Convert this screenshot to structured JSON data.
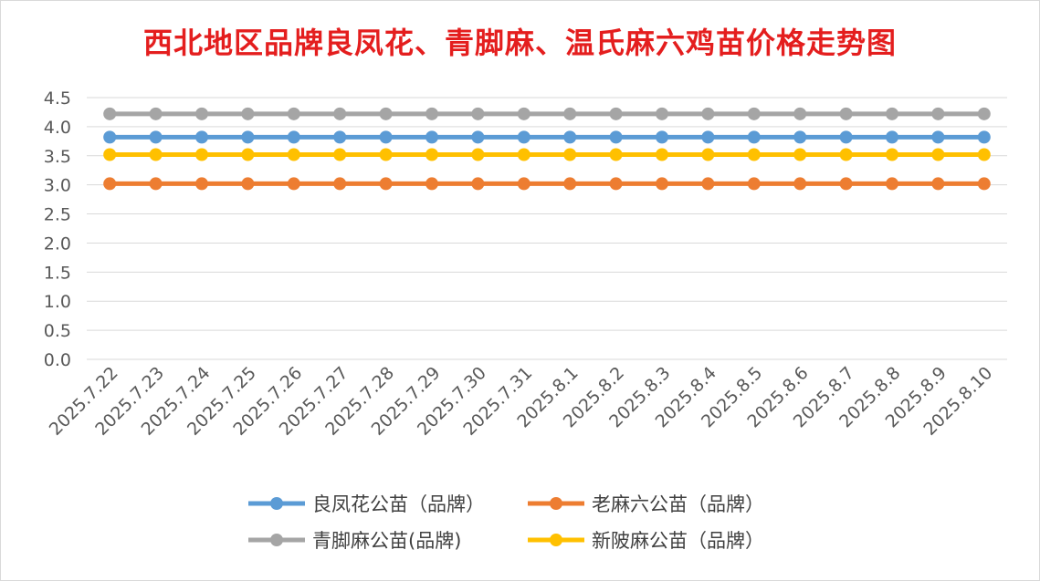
{
  "chart_data": {
    "type": "line",
    "title": "西北地区品牌良凤花、青脚麻、温氏麻六鸡苗价格走势图",
    "xlabel": "",
    "ylabel": "",
    "ylim": [
      0,
      4.5
    ],
    "yticks": [
      "0.0",
      "0.5",
      "1.0",
      "1.5",
      "2.0",
      "2.5",
      "3.0",
      "3.5",
      "4.0",
      "4.5"
    ],
    "grid": true,
    "legend_position": "bottom",
    "categories": [
      "2025.7.22",
      "2025.7.23",
      "2025.7.24",
      "2025.7.25",
      "2025.7.26",
      "2025.7.27",
      "2025.7.28",
      "2025.7.29",
      "2025.7.30",
      "2025.7.31",
      "2025.8.1",
      "2025.8.2",
      "2025.8.3",
      "2025.8.4",
      "2025.8.5",
      "2025.8.6",
      "2025.8.7",
      "2025.8.8",
      "2025.8.9",
      "2025.8.10"
    ],
    "series": [
      {
        "name": "良凤花公苗（品牌）",
        "color": "#5b9bd5",
        "values": [
          3.82,
          3.82,
          3.82,
          3.82,
          3.82,
          3.82,
          3.82,
          3.82,
          3.82,
          3.82,
          3.82,
          3.82,
          3.82,
          3.82,
          3.82,
          3.82,
          3.82,
          3.82,
          3.82,
          3.82
        ]
      },
      {
        "name": "老麻六公苗（品牌）",
        "color": "#ed7d31",
        "values": [
          3.02,
          3.02,
          3.02,
          3.02,
          3.02,
          3.02,
          3.02,
          3.02,
          3.02,
          3.02,
          3.02,
          3.02,
          3.02,
          3.02,
          3.02,
          3.02,
          3.02,
          3.02,
          3.02,
          3.02
        ]
      },
      {
        "name": "青脚麻公苗(品牌)",
        "color": "#a5a5a5",
        "values": [
          4.22,
          4.22,
          4.22,
          4.22,
          4.22,
          4.22,
          4.22,
          4.22,
          4.22,
          4.22,
          4.22,
          4.22,
          4.22,
          4.22,
          4.22,
          4.22,
          4.22,
          4.22,
          4.22,
          4.22
        ]
      },
      {
        "name": "新陂麻公苗（品牌）",
        "color": "#ffc000",
        "values": [
          3.52,
          3.52,
          3.52,
          3.52,
          3.52,
          3.52,
          3.52,
          3.52,
          3.52,
          3.52,
          3.52,
          3.52,
          3.52,
          3.52,
          3.52,
          3.52,
          3.52,
          3.52,
          3.52,
          3.52
        ]
      }
    ]
  }
}
